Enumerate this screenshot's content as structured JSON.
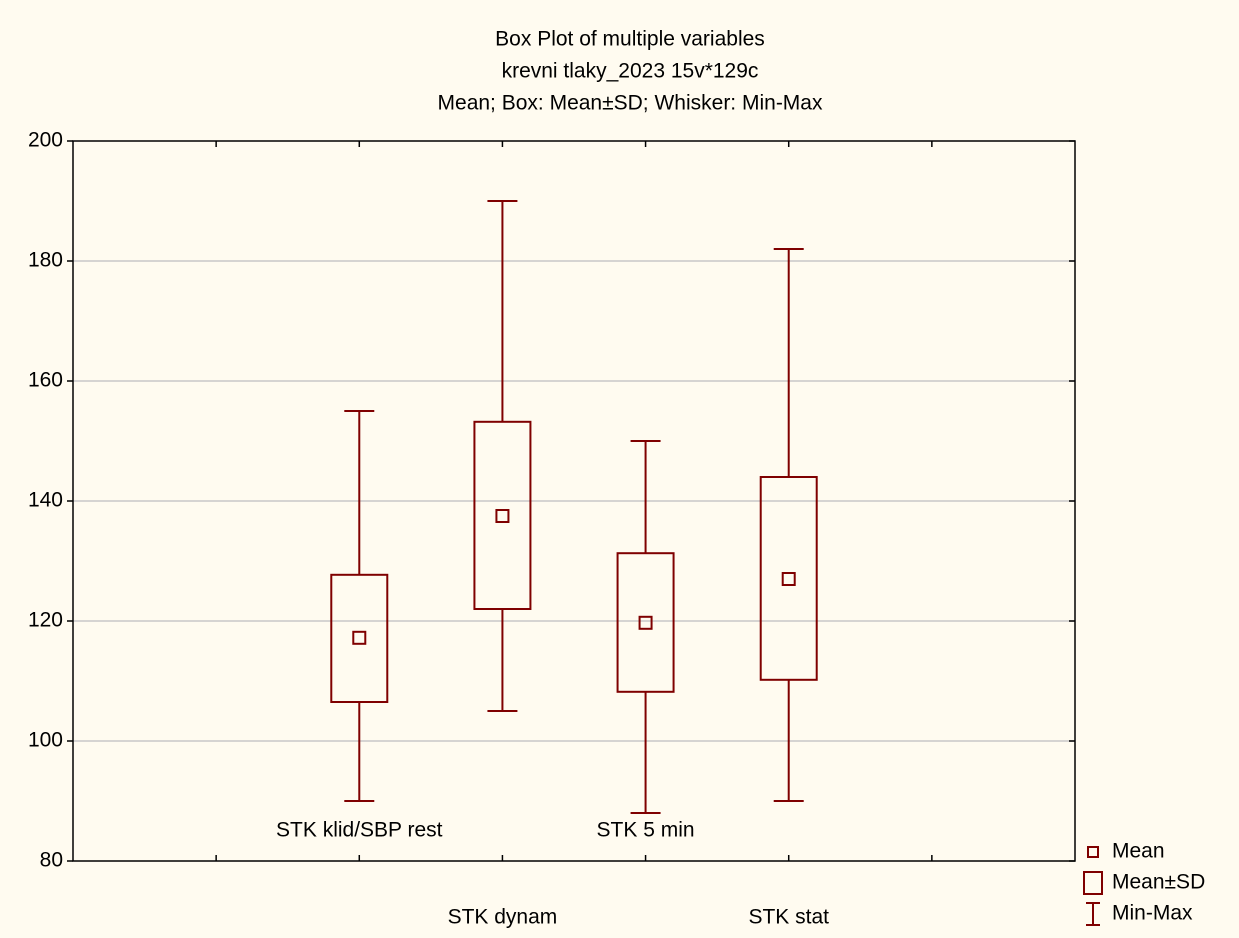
{
  "chart_data": {
    "type": "box",
    "title_lines": [
      "Box Plot of multiple variables",
      "krevni tlaky_2023 15v*129c",
      "Mean; Box: Mean±SD; Whisker: Min-Max"
    ],
    "categories": [
      "STK klid/SBP rest",
      "STK dynam",
      "STK 5 min",
      "STK stat"
    ],
    "mean": [
      117.2,
      137.5,
      119.7,
      127.0
    ],
    "box_low": [
      106.5,
      122.0,
      108.2,
      110.2
    ],
    "box_high": [
      127.7,
      153.2,
      131.3,
      144.0
    ],
    "min": [
      90,
      105,
      88,
      90
    ],
    "max": [
      155,
      190,
      150,
      182
    ],
    "legend": [
      "Mean",
      "Mean±SD",
      "Min-Max"
    ],
    "color": "#7f0000",
    "ylim": [
      80,
      200
    ],
    "yticks": [
      80,
      100,
      120,
      140,
      160,
      180,
      200
    ],
    "grid": true
  }
}
